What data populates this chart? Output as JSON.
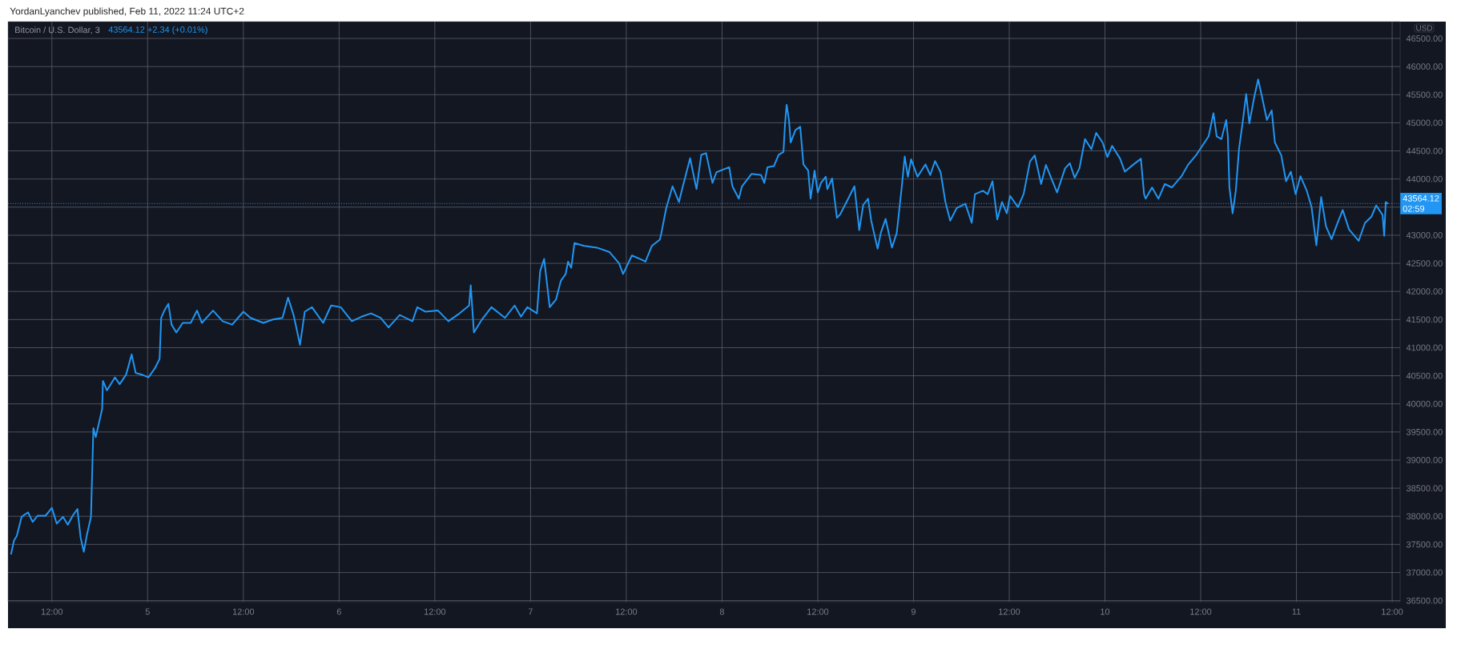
{
  "chart_data": {
    "type": "line",
    "title": "Bitcoin / U.S. Dollar, 3",
    "subtitle": "43564.12  +2.34 (+0.01%)",
    "ylabel": "USD",
    "annotations": [
      "YordanLyanchev published, Feb 11, 2022 11:24 UTC+2",
      "02:59"
    ],
    "x": [
      "2022-02-04T06:52",
      "2022-02-04T07:15",
      "2022-02-04T07:36",
      "2022-02-04T08:12",
      "2022-02-04T09:00",
      "2022-02-04T09:36",
      "2022-02-04T10:12",
      "2022-02-04T11:12",
      "2022-02-04T12:00",
      "2022-02-04T12:36",
      "2022-02-04T13:24",
      "2022-02-04T14:00",
      "2022-02-04T14:36",
      "2022-02-04T15:12",
      "2022-02-04T15:36",
      "2022-02-04T16:00",
      "2022-02-04T16:24",
      "2022-02-04T16:54",
      "2022-02-04T17:12",
      "2022-02-04T17:30",
      "2022-02-04T18:18",
      "2022-02-04T18:24",
      "2022-02-04T18:54",
      "2022-02-04T19:54",
      "2022-02-04T20:30",
      "2022-02-04T21:18",
      "2022-02-04T22:00",
      "2022-02-04T22:30",
      "2022-02-04T23:18",
      "2022-02-05T00:06",
      "2022-02-05T00:54",
      "2022-02-05T01:30",
      "2022-02-05T01:42",
      "2022-02-05T02:06",
      "2022-02-05T02:36",
      "2022-02-05T03:00",
      "2022-02-05T03:36",
      "2022-02-05T04:24",
      "2022-02-05T05:24",
      "2022-02-05T06:12",
      "2022-02-05T06:48",
      "2022-02-05T08:12",
      "2022-02-05T09:24",
      "2022-02-05T10:36",
      "2022-02-05T12:00",
      "2022-02-05T12:54",
      "2022-02-05T14:30",
      "2022-02-05T15:42",
      "2022-02-05T16:54",
      "2022-02-05T17:36",
      "2022-02-05T18:18",
      "2022-02-05T19:06",
      "2022-02-05T19:42",
      "2022-02-05T20:36",
      "2022-02-05T22:00",
      "2022-02-05T23:00",
      "2022-02-06T00:12",
      "2022-02-06T01:36",
      "2022-02-06T02:48",
      "2022-02-06T04:00",
      "2022-02-06T05:12",
      "2022-02-06T06:12",
      "2022-02-06T07:36",
      "2022-02-06T09:12",
      "2022-02-06T09:48",
      "2022-02-06T10:48",
      "2022-02-06T12:24",
      "2022-02-06T13:42",
      "2022-02-06T15:06",
      "2022-02-06T16:18",
      "2022-02-06T16:30",
      "2022-02-06T16:54",
      "2022-02-06T17:54",
      "2022-02-06T19:06",
      "2022-02-06T20:48",
      "2022-02-06T22:00",
      "2022-02-06T22:48",
      "2022-02-06T23:36",
      "2022-02-07T00:48",
      "2022-02-07T01:12",
      "2022-02-07T01:42",
      "2022-02-07T02:24",
      "2022-02-07T03:12",
      "2022-02-07T03:48",
      "2022-02-07T04:24",
      "2022-02-07T04:42",
      "2022-02-07T05:06",
      "2022-02-07T05:30",
      "2022-02-07T06:42",
      "2022-02-07T08:18",
      "2022-02-07T09:54",
      "2022-02-07T11:06",
      "2022-02-07T11:36",
      "2022-02-07T12:42",
      "2022-02-07T14:00",
      "2022-02-07T14:24",
      "2022-02-07T15:12",
      "2022-02-07T16:12",
      "2022-02-07T16:24",
      "2022-02-07T17:00",
      "2022-02-07T17:48",
      "2022-02-07T18:36",
      "2022-02-07T19:00",
      "2022-02-07T20:00",
      "2022-02-07T20:48",
      "2022-02-07T21:24",
      "2022-02-07T22:00",
      "2022-02-07T22:48",
      "2022-02-07T23:18",
      "2022-02-08T00:54",
      "2022-02-08T01:18",
      "2022-02-08T02:06",
      "2022-02-08T02:30",
      "2022-02-08T03:42",
      "2022-02-08T04:54",
      "2022-02-08T05:18",
      "2022-02-08T05:42",
      "2022-02-08T06:30",
      "2022-02-08T07:06",
      "2022-02-08T07:42",
      "2022-02-08T07:54",
      "2022-02-08T08:06",
      "2022-02-08T08:24",
      "2022-02-08T08:36",
      "2022-02-08T09:12",
      "2022-02-08T09:48",
      "2022-02-08T10:12",
      "2022-02-08T10:48",
      "2022-02-08T11:06",
      "2022-02-08T11:36",
      "2022-02-08T12:00",
      "2022-02-08T12:24",
      "2022-02-08T13:00",
      "2022-02-08T13:12",
      "2022-02-08T13:48",
      "2022-02-08T14:24",
      "2022-02-08T14:48",
      "2022-02-08T15:36",
      "2022-02-08T16:36",
      "2022-02-08T17:12",
      "2022-02-08T17:42",
      "2022-02-08T18:18",
      "2022-02-08T18:42",
      "2022-02-08T19:30",
      "2022-02-08T19:54",
      "2022-02-08T20:30",
      "2022-02-08T21:18",
      "2022-02-08T21:54",
      "2022-02-08T22:30",
      "2022-02-08T22:54",
      "2022-02-08T23:18",
      "2022-02-08T23:42",
      "2022-02-09T00:30",
      "2022-02-09T01:30",
      "2022-02-09T02:06",
      "2022-02-09T02:42",
      "2022-02-09T03:24",
      "2022-02-09T04:00",
      "2022-02-09T04:36",
      "2022-02-09T05:24",
      "2022-02-09T06:30",
      "2022-02-09T07:18",
      "2022-02-09T07:42",
      "2022-02-09T08:42",
      "2022-02-09T09:18",
      "2022-02-09T09:54",
      "2022-02-09T10:30",
      "2022-02-09T11:06",
      "2022-02-09T11:42",
      "2022-02-09T12:06",
      "2022-02-09T13:06",
      "2022-02-09T13:48",
      "2022-02-09T14:36",
      "2022-02-09T15:12",
      "2022-02-09T16:00",
      "2022-02-09T16:36",
      "2022-02-09T18:00",
      "2022-02-09T19:00",
      "2022-02-09T19:36",
      "2022-02-09T20:12",
      "2022-02-09T20:48",
      "2022-02-09T21:30",
      "2022-02-09T22:18",
      "2022-02-09T22:54",
      "2022-02-09T23:42",
      "2022-02-10T00:18",
      "2022-02-10T00:54",
      "2022-02-10T01:54",
      "2022-02-10T02:30",
      "2022-02-10T03:30",
      "2022-02-10T04:30",
      "2022-02-10T04:54",
      "2022-02-10T05:06",
      "2022-02-10T05:54",
      "2022-02-10T06:42",
      "2022-02-10T07:30",
      "2022-02-10T08:24",
      "2022-02-10T09:36",
      "2022-02-10T10:24",
      "2022-02-10T11:24",
      "2022-02-10T12:12",
      "2022-02-10T13:00",
      "2022-02-10T13:36",
      "2022-02-10T14:00",
      "2022-02-10T14:36",
      "2022-02-10T15:12",
      "2022-02-10T15:24",
      "2022-02-10T15:36",
      "2022-02-10T16:00",
      "2022-02-10T16:24",
      "2022-02-10T16:48",
      "2022-02-10T17:18",
      "2022-02-10T17:42",
      "2022-02-10T18:06",
      "2022-02-10T18:42",
      "2022-02-10T19:12",
      "2022-02-10T19:42",
      "2022-02-10T20:18",
      "2022-02-10T20:54",
      "2022-02-10T21:18",
      "2022-02-10T22:06",
      "2022-02-10T22:42",
      "2022-02-10T23:18",
      "2022-02-10T23:54",
      "2022-02-11T00:30",
      "2022-02-11T01:18",
      "2022-02-11T01:54",
      "2022-02-11T02:30",
      "2022-02-11T03:06",
      "2022-02-11T03:42",
      "2022-02-11T04:24",
      "2022-02-11T05:00",
      "2022-02-11T05:48",
      "2022-02-11T06:36",
      "2022-02-11T07:48",
      "2022-02-11T08:36",
      "2022-02-11T09:24",
      "2022-02-11T10:00",
      "2022-02-11T10:48",
      "2022-02-11T11:00",
      "2022-02-11T11:12",
      "2022-02-11T11:30"
    ],
    "series": [
      {
        "color": "#2196f3",
        "values": [
          37320,
          37570,
          37650,
          37990,
          38070,
          37900,
          38010,
          38010,
          38150,
          37870,
          37990,
          37850,
          38010,
          38130,
          37620,
          37370,
          37680,
          37990,
          39570,
          39410,
          39910,
          40410,
          40240,
          40470,
          40350,
          40520,
          40880,
          40550,
          40520,
          40470,
          40630,
          40800,
          41530,
          41660,
          41780,
          41410,
          41270,
          41440,
          41440,
          41660,
          41440,
          41660,
          41470,
          41410,
          41640,
          41530,
          41440,
          41500,
          41530,
          41890,
          41580,
          41050,
          41640,
          41720,
          41440,
          41750,
          41720,
          41470,
          41550,
          41610,
          41530,
          41360,
          41580,
          41470,
          41720,
          41640,
          41660,
          41470,
          41610,
          41750,
          42110,
          41270,
          41500,
          41720,
          41530,
          41750,
          41550,
          41720,
          41610,
          42360,
          42580,
          41720,
          41860,
          42190,
          42310,
          42530,
          42420,
          42860,
          42810,
          42780,
          42700,
          42500,
          42310,
          42640,
          42560,
          42530,
          42810,
          42920,
          43040,
          43480,
          43870,
          43590,
          43820,
          44370,
          43820,
          44430,
          44460,
          43930,
          44120,
          44210,
          43870,
          43650,
          43870,
          44090,
          44070,
          43930,
          44210,
          44230,
          44430,
          44480,
          44990,
          45320,
          45040,
          44650,
          44870,
          44930,
          44260,
          44150,
          43650,
          44150,
          43760,
          43930,
          44040,
          43820,
          44010,
          43310,
          43370,
          43590,
          43870,
          43090,
          43540,
          43650,
          43260,
          42760,
          43040,
          43290,
          42780,
          43040,
          43820,
          44400,
          44040,
          44350,
          44040,
          44260,
          44070,
          44320,
          44120,
          43590,
          43260,
          43480,
          43560,
          43220,
          43730,
          43790,
          43730,
          43960,
          43280,
          43590,
          43390,
          43700,
          43500,
          43730,
          44310,
          44420,
          43910,
          44250,
          43760,
          44190,
          44280,
          44020,
          44190,
          44710,
          44530,
          44820,
          44650,
          44390,
          44590,
          44360,
          44130,
          44250,
          44360,
          43730,
          43650,
          43850,
          43650,
          43910,
          43850,
          44050,
          44250,
          44420,
          44590,
          44760,
          45170,
          44760,
          44710,
          45050,
          44760,
          43850,
          43390,
          43790,
          44530,
          45050,
          45510,
          44990,
          45450,
          45770,
          45450,
          45050,
          45220,
          44650,
          44420,
          43960,
          44130,
          43730,
          44050,
          43790,
          43500,
          42820,
          43680,
          43160,
          42930,
          43160,
          43450,
          43100,
          42900,
          43220,
          43330,
          43530,
          43360,
          42990,
          43590,
          43560
        ]
      }
    ],
    "xlim": [
      "2022-02-04T06:30",
      "2022-02-11T13:00"
    ],
    "ylim": [
      36480,
      46800
    ],
    "xticks": [
      {
        "value": "2022-02-04T12:00",
        "label": "12:00"
      },
      {
        "value": "2022-02-05T00:00",
        "label": "5"
      },
      {
        "value": "2022-02-05T12:00",
        "label": "12:00"
      },
      {
        "value": "2022-02-06T00:00",
        "label": "6"
      },
      {
        "value": "2022-02-06T12:00",
        "label": "12:00"
      },
      {
        "value": "2022-02-07T00:00",
        "label": "7"
      },
      {
        "value": "2022-02-07T12:00",
        "label": "12:00"
      },
      {
        "value": "2022-02-08T00:00",
        "label": "8"
      },
      {
        "value": "2022-02-08T12:00",
        "label": "12:00"
      },
      {
        "value": "2022-02-09T00:00",
        "label": "9"
      },
      {
        "value": "2022-02-09T12:00",
        "label": "12:00"
      },
      {
        "value": "2022-02-10T00:00",
        "label": "10"
      },
      {
        "value": "2022-02-10T12:00",
        "label": "12:00"
      },
      {
        "value": "2022-02-11T00:00",
        "label": "11"
      },
      {
        "value": "2022-02-11T12:00",
        "label": "12:00"
      }
    ],
    "yticks": [
      {
        "value": 36500,
        "label": "36500.00"
      },
      {
        "value": 37000,
        "label": "37000.00"
      },
      {
        "value": 37500,
        "label": "37500.00"
      },
      {
        "value": 38000,
        "label": "38000.00"
      },
      {
        "value": 38500,
        "label": "38500.00"
      },
      {
        "value": 39000,
        "label": "39000.00"
      },
      {
        "value": 39500,
        "label": "39500.00"
      },
      {
        "value": 40000,
        "label": "40000.00"
      },
      {
        "value": 40500,
        "label": "40500.00"
      },
      {
        "value": 41000,
        "label": "41000.00"
      },
      {
        "value": 41500,
        "label": "41500.00"
      },
      {
        "value": 42000,
        "label": "42000.00"
      },
      {
        "value": 42500,
        "label": "42500.00"
      },
      {
        "value": 43000,
        "label": "43000.00"
      },
      {
        "value": 43500,
        "label": null
      },
      {
        "value": 44000,
        "label": "44000.00"
      },
      {
        "value": 44500,
        "label": "44500.00"
      },
      {
        "value": 45000,
        "label": "45000.00"
      },
      {
        "value": 45500,
        "label": "45500.00"
      },
      {
        "value": 46000,
        "label": "46000.00"
      },
      {
        "value": 46500,
        "label": "46500.00"
      }
    ],
    "grid": true,
    "ref_lines": [
      {
        "axis": "y",
        "value": 43564.12,
        "label": "43564.12",
        "color": "#2196f3",
        "line_style": "dotted"
      }
    ]
  }
}
